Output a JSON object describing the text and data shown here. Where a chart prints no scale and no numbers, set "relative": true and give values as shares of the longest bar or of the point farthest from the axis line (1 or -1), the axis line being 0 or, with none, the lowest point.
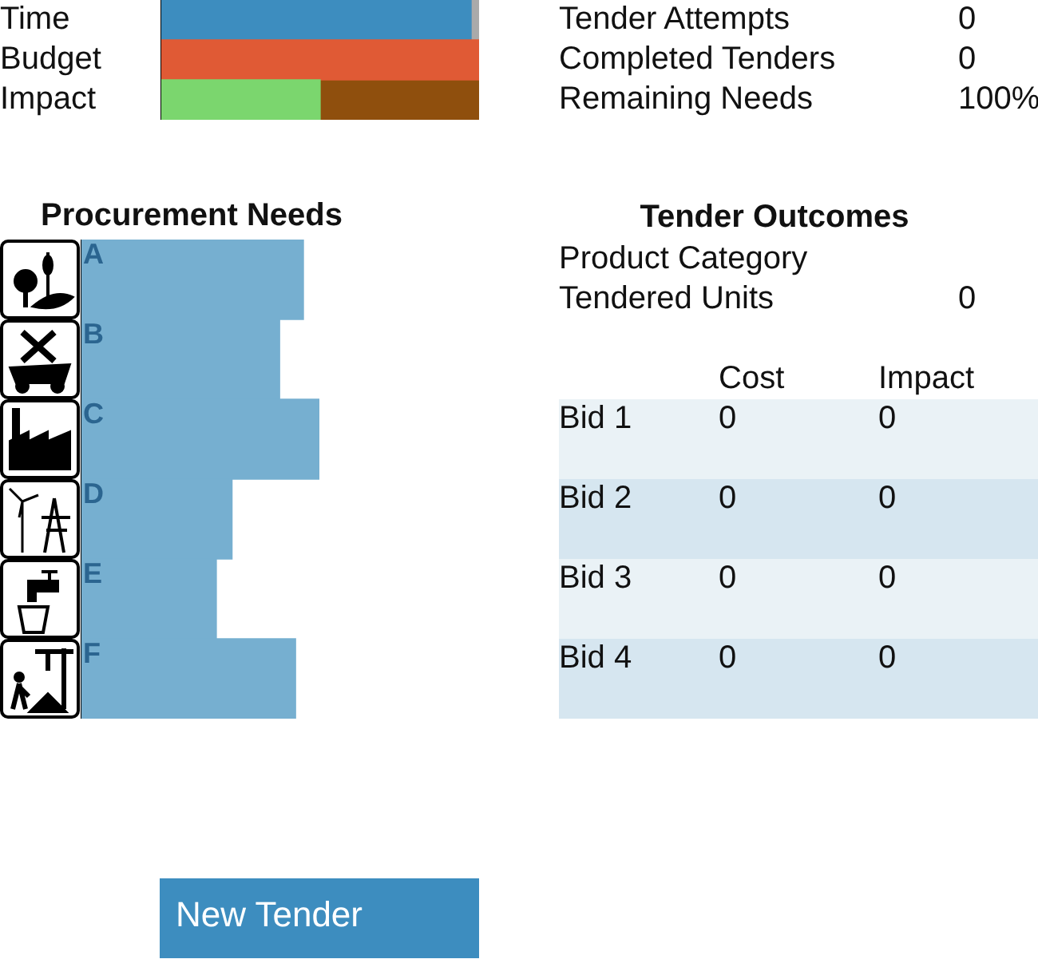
{
  "chart_data": [
    {
      "type": "bar",
      "orientation": "horizontal",
      "stacked": true,
      "relative": true,
      "categories": [
        "Time",
        "Budget",
        "Impact"
      ],
      "series": [
        {
          "colors": [
            "#3d8dbf",
            "#e05a35",
            "#7bd66e"
          ],
          "values": [
            0.975,
            1,
            0.5
          ]
        },
        {
          "colors": [
            "#aaaaaa",
            "#e05a35",
            "#8f4f0d"
          ],
          "values": [
            0.025,
            null,
            0.5
          ]
        }
      ]
    },
    {
      "type": "bar",
      "orientation": "horizontal",
      "relative": true,
      "title": "Procurement Needs",
      "categories": [
        "A",
        "B",
        "C",
        "D",
        "E",
        "F"
      ],
      "color": "#76afd0",
      "values": [
        0.933,
        0.833,
        1,
        0.633,
        0.567,
        0.9
      ]
    },
    {
      "type": "other",
      "categories": [
        "Tender Attempts",
        "Completed Tenders",
        "Remaining Needs"
      ],
      "values": [
        0,
        0,
        100
      ],
      "value_labels": [
        "0",
        "0",
        "100%"
      ]
    },
    {
      "type": "other",
      "title": "Tender Outcomes",
      "categories": [
        "Product Category",
        "Tendered Units"
      ],
      "values": [
        null,
        0
      ],
      "value_labels": [
        null,
        "0"
      ]
    },
    {
      "type": "other",
      "categories": [
        "Bid 1",
        "Bid 2",
        "Bid 3",
        "Bid 4"
      ],
      "data_labels": true,
      "series": [
        {
          "name": "Cost",
          "colors": [
            "#eaf2f6",
            "#d6e6f0",
            "#eaf2f6",
            "#d6e6f0"
          ],
          "values": [
            0,
            0,
            0,
            0
          ]
        },
        {
          "name": "Impact",
          "colors": [
            "#eaf2f6",
            "#d6e6f0",
            "#eaf2f6",
            "#d6e6f0"
          ],
          "values": [
            0,
            0,
            0,
            0
          ]
        }
      ]
    },
    {
      "type": "other",
      "annotations": [
        "New Tender"
      ]
    }
  ]
}
